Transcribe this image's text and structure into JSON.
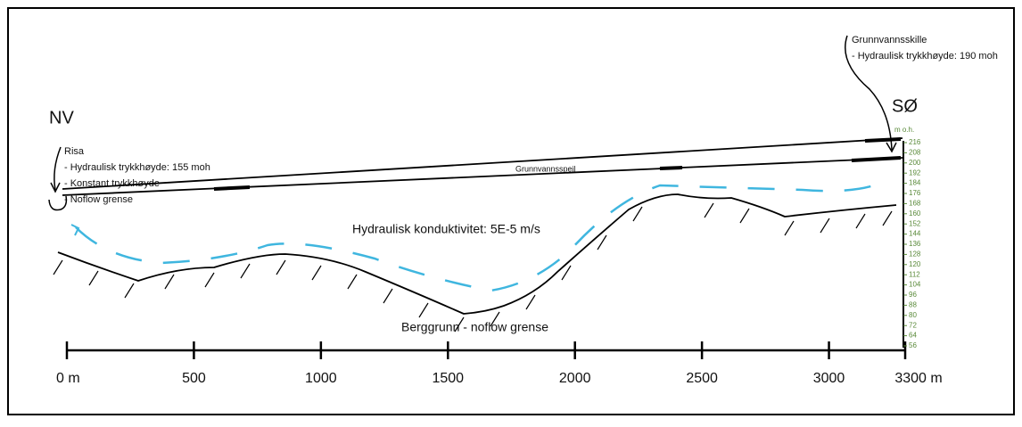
{
  "left_label": "NV",
  "right_label": "SØ",
  "risa": {
    "title": "Risa",
    "lines": [
      "- Hydraulisk trykkhøyde: 155 moh",
      "- Konstant trykkhøyde",
      "- Noflow grense"
    ]
  },
  "divide": {
    "title": "Grunnvannsskille",
    "lines": [
      "- Hydraulisk trykkhøyde: 190 moh"
    ]
  },
  "water_table": "Grunnvannsspeil",
  "conductivity": "Hydraulisk konduktivitet: 5E-5 m/s",
  "bedrock": "Berggrunn - noflow grense",
  "distance_axis": {
    "ticks": [
      {
        "value": 0,
        "label": "0 m"
      },
      500,
      1000,
      1500,
      2000,
      2500,
      3000,
      {
        "value": 3300,
        "label": "3300 m"
      }
    ]
  },
  "elevation_axis": {
    "unit": "m o.h.",
    "ticks": [
      216,
      208,
      200,
      192,
      184,
      176,
      168,
      160,
      152,
      144,
      136,
      128,
      120,
      112,
      104,
      96,
      88,
      80,
      72,
      64,
      56
    ]
  }
}
